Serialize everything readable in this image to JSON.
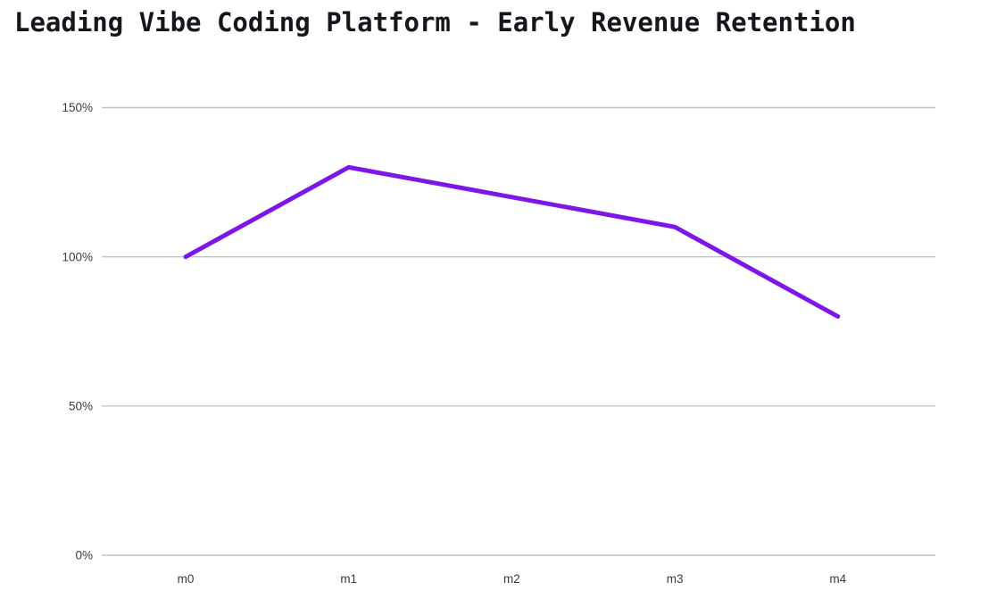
{
  "title": "Leading Vibe Coding Platform - Early Revenue Retention",
  "colors": {
    "line": "#7d17e8",
    "grid": "#c2c2c2",
    "title_text": "#16161d",
    "axis_text": "#3b3b3b",
    "background": "#ffffff"
  },
  "chart_data": {
    "type": "line",
    "title": "Leading Vibe Coding Platform - Early Revenue Retention",
    "categories": [
      "m0",
      "m1",
      "m2",
      "m3",
      "m4"
    ],
    "values": [
      100,
      130,
      120,
      110,
      80
    ],
    "unit": "%",
    "xlabel": "",
    "ylabel": "",
    "ylim": [
      0,
      150
    ],
    "yticks": [
      0,
      50,
      100,
      150
    ],
    "ytick_labels": [
      "0%",
      "50%",
      "100%",
      "150%"
    ],
    "grid": "horizontal",
    "legend": "none"
  }
}
